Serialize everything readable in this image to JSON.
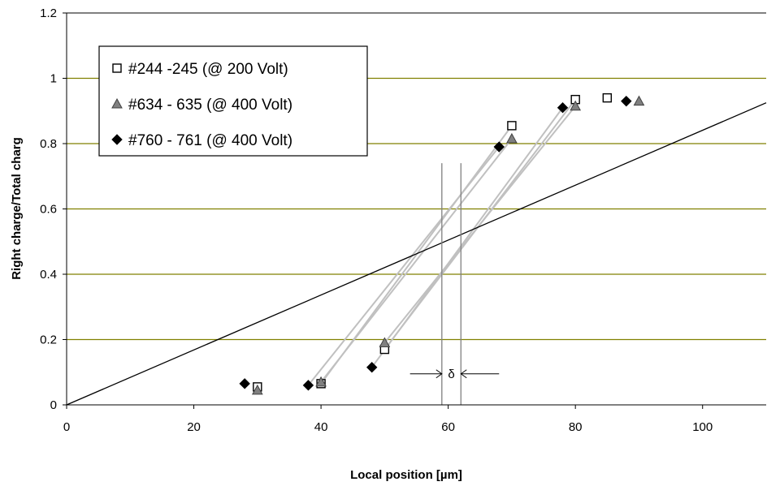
{
  "chart_data": {
    "type": "scatter",
    "title": "",
    "xlabel": "Local position [µm]",
    "ylabel": "Right charge/Total charg",
    "xlim": [
      0,
      110
    ],
    "ylim": [
      0,
      1.2
    ],
    "x_ticks": [
      0,
      20,
      40,
      60,
      80,
      100
    ],
    "x_tick_labels": [
      "0",
      "20",
      "40",
      "60",
      "80",
      "100"
    ],
    "y_ticks": [
      0,
      0.2,
      0.4,
      0.6,
      0.8,
      1.0,
      1.2
    ],
    "y_tick_labels": [
      "0",
      "0.2",
      "0.4",
      "0.6",
      "0.8",
      "1",
      "1.2"
    ],
    "grid": "horizontal",
    "legend_position": "top-left",
    "series": [
      {
        "name": "#244 -245 (@ 200 Volt)",
        "marker": "square-open",
        "color": "#000000",
        "points": [
          [
            30,
            0.055
          ],
          [
            40,
            0.065
          ],
          [
            50,
            0.17
          ],
          [
            70,
            0.855
          ],
          [
            80,
            0.935
          ],
          [
            85,
            0.94
          ]
        ]
      },
      {
        "name": "#634 - 635 (@ 400 Volt)",
        "marker": "triangle",
        "color": "#808080",
        "points": [
          [
            30,
            0.045
          ],
          [
            40,
            0.07
          ],
          [
            50,
            0.19
          ],
          [
            70,
            0.815
          ],
          [
            80,
            0.915
          ],
          [
            90,
            0.93
          ]
        ]
      },
      {
        "name": "#760 - 761 (@ 400 Volt)",
        "marker": "diamond",
        "color": "#000000",
        "points": [
          [
            28,
            0.065
          ],
          [
            38,
            0.06
          ],
          [
            48,
            0.115
          ],
          [
            68,
            0.79
          ],
          [
            78,
            0.91
          ],
          [
            88,
            0.93
          ]
        ]
      }
    ],
    "reference_line": {
      "from": [
        0,
        0
      ],
      "to": [
        110,
        0.925
      ],
      "color": "#000000"
    },
    "fit_lines": [
      {
        "from": [
          40,
          0.065
        ],
        "to": [
          70,
          0.855
        ]
      },
      {
        "from": [
          40,
          0.07
        ],
        "to": [
          70,
          0.815
        ]
      },
      {
        "from": [
          38,
          0.06
        ],
        "to": [
          68,
          0.79
        ]
      },
      {
        "from": [
          50,
          0.17
        ],
        "to": [
          80,
          0.935
        ]
      },
      {
        "from": [
          50,
          0.19
        ],
        "to": [
          80,
          0.915
        ]
      },
      {
        "from": [
          48,
          0.115
        ],
        "to": [
          78,
          0.91
        ]
      }
    ],
    "vertical_markers": [
      59,
      62
    ],
    "annotation": {
      "text": "δ",
      "x": 60.5,
      "y": 0.095,
      "left_arrow_from": 54,
      "right_arrow_from": 68
    }
  }
}
